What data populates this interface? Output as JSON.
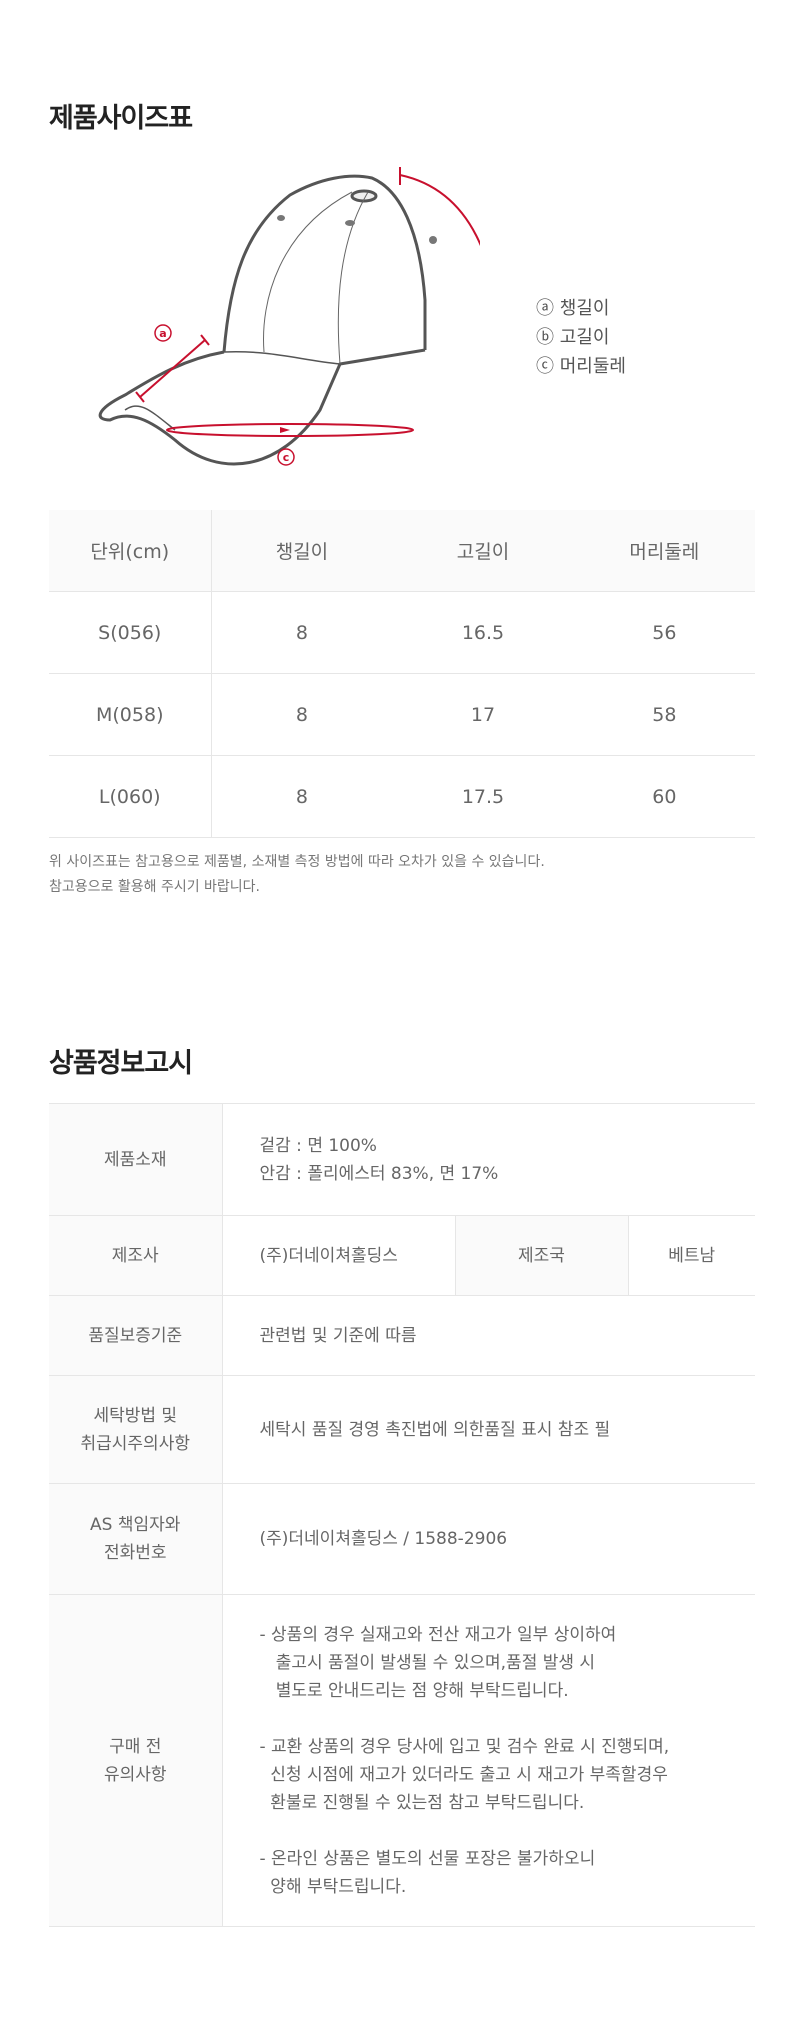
{
  "size_section": {
    "title": "제품사이즈표",
    "legend": [
      "ⓐ 챙길이",
      "ⓑ 고길이",
      "ⓒ 머리둘레"
    ],
    "diagram_markers": [
      "a",
      "b",
      "c"
    ],
    "accent_color": "#c8102e",
    "headers": [
      "단위(cm)",
      "챙길이",
      "고길이",
      "머리둘레"
    ],
    "rows": [
      [
        "S(056)",
        "8",
        "16.5",
        "56"
      ],
      [
        "M(058)",
        "8",
        "17",
        "58"
      ],
      [
        "L(060)",
        "8",
        "17.5",
        "60"
      ]
    ],
    "notes": [
      "위 사이즈표는 참고용으로 제품별, 소재별 측정 방법에 따라 오차가 있을 수 있습니다.",
      "참고용으로 활용해 주시기 바랍니다."
    ]
  },
  "info_section": {
    "title": "상품정보고시",
    "material_label": "제품소재",
    "material_lines": [
      "겉감 : 면 100%",
      "안감 : 폴리에스터 83%, 면 17%"
    ],
    "maker_label": "제조사",
    "maker_value": "(주)더네이쳐홀딩스",
    "country_label": "제조국",
    "country_value": "베트남",
    "quality_label": "품질보증기준",
    "quality_value": "관련법 및 기준에 따름",
    "wash_label_lines": [
      "세탁방법 및",
      "취급시주의사항"
    ],
    "wash_value": "세탁시 품질 경영 촉진법에 의한품질 표시 참조 필",
    "as_label_lines": [
      "AS 책임자와",
      "전화번호"
    ],
    "as_value": "(주)더네이쳐홀딩스 / 1588-2906",
    "notice_label_lines": [
      "구매 전",
      "유의사항"
    ],
    "notice_paragraphs": [
      "- 상품의 경우 실재고와 전산 재고가 일부 상이하여\n   출고시 품절이 발생될 수 있으며,품절 발생 시\n   별도로 안내드리는 점 양해 부탁드립니다.",
      "- 교환 상품의 경우 당사에 입고 및 검수 완료 시 진행되며,\n  신청 시점에 재고가 있더라도 출고 시 재고가 부족할경우\n  환불로 진행될 수 있는점 참고 부탁드립니다.",
      "- 온라인 상품은 별도의 선물 포장은 불가하오니\n  양해 부탁드립니다."
    ]
  }
}
